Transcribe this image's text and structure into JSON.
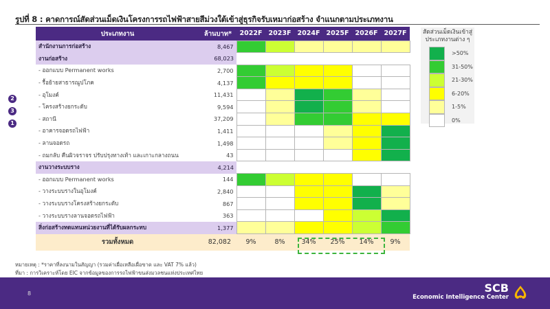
{
  "title": "รูปที่ 8 : คาดการณ์สัดส่วนเม็ดเงินโครงการรถไฟฟ้าสายสีม่วงใต้เข้าสู่ธุรกิจรับเหมาก่อสร้าง จำแนกตามประเภทงาน",
  "table": {
    "headers": [
      "ประเภทงาน",
      "ล้านบาท*",
      "2022F",
      "2023F",
      "2024F",
      "2025F",
      "2026F",
      "2027F"
    ],
    "total": {
      "label": "รวมทั้งหมด",
      "value": "82,082",
      "shares": [
        "9%",
        "8%",
        "34%",
        "25%",
        "14%",
        "9%"
      ]
    }
  },
  "legend": {
    "title_line1": "สัดส่วนเม็ดเงินเข้าสู่",
    "title_line2": "ประเภทงานต่าง ๆ",
    "items": [
      {
        "label": ">50%",
        "color": "#12b04c"
      },
      {
        "label": "31-50%",
        "color": "#33cc33"
      },
      {
        "label": "21-30%",
        "color": "#ccff33"
      },
      {
        "label": "6-20%",
        "color": "#ffff00"
      },
      {
        "label": "1-5%",
        "color": "#ffff99"
      },
      {
        "label": "0%",
        "color": "#ffffff"
      }
    ]
  },
  "badges": [
    "2",
    "3",
    "1"
  ],
  "notes": {
    "note": "หมายเหตุ : *ราคาที่ลงนามในสัญญา (รวมค่าเผื่อเหลือเผื่อขาด และ VAT 7% แล้ว)",
    "source": "ที่มา : การวิเคราะห์โดย EIC จากข้อมูลของการรถไฟฟ้าขนส่งมวลชนแห่งประเทศไทย"
  },
  "footer": {
    "page_number": "8",
    "brand_name": "SCB",
    "brand_sub": "Economic Intelligence Center"
  },
  "chart_data": {
    "type": "heatmap",
    "title": "รูปที่ 8 : คาดการณ์สัดส่วนเม็ดเงินโครงการรถไฟฟ้าสายสีม่วงใต้เข้าสู่ธุรกิจรับเหมาก่อสร้าง จำแนกตามประเภทงาน",
    "x": [
      "2022F",
      "2023F",
      "2024F",
      "2025F",
      "2026F",
      "2027F"
    ],
    "value_unit": "ล้านบาท*",
    "level_scale": {
      "0": "0%",
      "1": "1-5%",
      "2": "6-20%",
      "3": "21-30%",
      "4": "31-50%",
      "5": ">50%"
    },
    "rows": [
      {
        "label": "สำนักงานการก่อสร้าง",
        "value": "8,467",
        "group": true,
        "levels": [
          4,
          3,
          1,
          1,
          1,
          1
        ]
      },
      {
        "label": "งานก่อสร้าง",
        "value": "68,023",
        "group": true,
        "levels": null
      },
      {
        "label": "- ออกแบบ Permanent works",
        "value": "2,700",
        "group": false,
        "levels": [
          4,
          3,
          2,
          2,
          0,
          0
        ]
      },
      {
        "label": "- รื้อย้ายสาธารณูปโภค",
        "value": "4,137",
        "group": false,
        "levels": [
          4,
          2,
          2,
          2,
          0,
          0
        ]
      },
      {
        "label": "- อุโมงค์",
        "value": "11,431",
        "group": false,
        "badge": "2",
        "levels": [
          0,
          1,
          5,
          4,
          1,
          0
        ]
      },
      {
        "label": "- โครงสร้างยกระดับ",
        "value": "9,594",
        "group": false,
        "badge": "3",
        "levels": [
          0,
          1,
          5,
          4,
          1,
          0
        ]
      },
      {
        "label": "- สถานี",
        "value": "37,209",
        "group": false,
        "badge": "1",
        "levels": [
          0,
          1,
          4,
          4,
          2,
          2
        ]
      },
      {
        "label": "- อาคารจอดรถไฟฟ้า",
        "value": "1,411",
        "group": false,
        "levels": [
          0,
          0,
          0,
          1,
          2,
          5
        ]
      },
      {
        "label": "- ลานจอดรถ",
        "value": "1,498",
        "group": false,
        "levels": [
          0,
          0,
          0,
          1,
          2,
          5
        ]
      },
      {
        "label": "- ถมกลับ คืนผิวจราจร ปรับปรุงทางเท้า และเกาะกลางถนน",
        "value": "43",
        "group": false,
        "levels": [
          0,
          0,
          0,
          0,
          2,
          5
        ]
      },
      {
        "label": "งานวางระบบราง",
        "value": "4,214",
        "group": true,
        "levels": null
      },
      {
        "label": "- ออกแบบ Permanent works",
        "value": "144",
        "group": false,
        "levels": [
          4,
          3,
          2,
          2,
          0,
          0
        ]
      },
      {
        "label": "- วางระบบรางในอุโมงค์",
        "value": "2,840",
        "group": false,
        "levels": [
          0,
          0,
          2,
          2,
          5,
          1
        ]
      },
      {
        "label": "- วางระบบรางโครงสร้างยกระดับ",
        "value": "867",
        "group": false,
        "levels": [
          0,
          0,
          2,
          2,
          5,
          1
        ]
      },
      {
        "label": "- วางระบบรางลานจอดรถไฟฟ้า",
        "value": "363",
        "group": false,
        "levels": [
          0,
          0,
          0,
          2,
          3,
          5
        ]
      },
      {
        "label": "สิ่งก่อสร้างทดแทนหน่วยงานที่ได้รับผลกระทบ",
        "value": "1,377",
        "group": true,
        "levels": [
          1,
          1,
          2,
          2,
          3,
          4
        ]
      }
    ],
    "total": {
      "label": "รวมทั้งหมด",
      "value": "82,082",
      "shares": [
        "9%",
        "8%",
        "34%",
        "25%",
        "14%",
        "9%"
      ]
    },
    "highlighted_columns": [
      "2024F",
      "2025F",
      "2026F"
    ],
    "legend": [
      ">50%",
      "31-50%",
      "21-30%",
      "6-20%",
      "1-5%",
      "0%"
    ],
    "legend_title": "สัดส่วนเม็ดเงินเข้าสู่ประเภทงานต่าง ๆ"
  }
}
